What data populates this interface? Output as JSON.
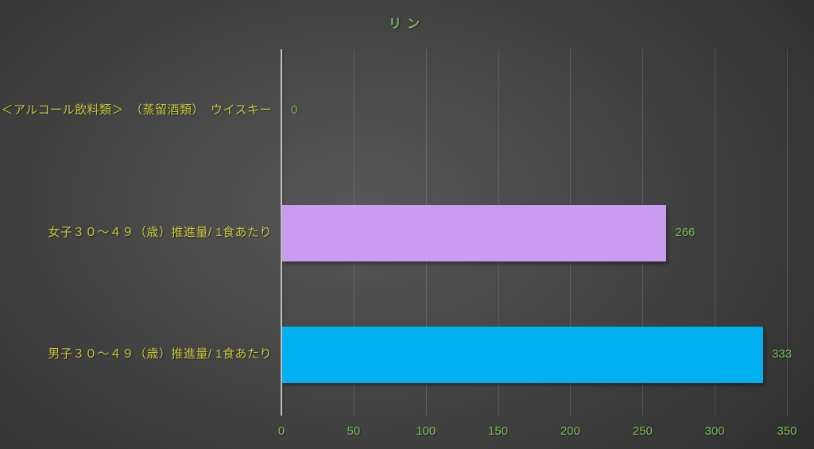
{
  "chart_data": {
    "type": "bar",
    "orientation": "horizontal",
    "title": "リン",
    "categories": [
      "＜アルコール飲料類＞　（蒸留酒類）　ウイスキー",
      "女子３０～４９（歳）推進量/ 1食あたり",
      "男子３０～４９（歳）推進量/ 1食あたり"
    ],
    "values": [
      0,
      266,
      333
    ],
    "value_labels": [
      "0",
      "266",
      "333"
    ],
    "bar_colors": [
      "#C99CF2",
      "#C99CF2",
      "#00B0F0"
    ],
    "xlim": [
      0,
      350
    ],
    "xticks": [
      0,
      50,
      100,
      150,
      200,
      250,
      300,
      350
    ],
    "grid": true,
    "legend": false
  },
  "colors": {
    "background_center": "#575757",
    "background_mid": "#424242",
    "background_edge": "#272727",
    "title_text": "#78BE5A",
    "category_text": "#C8C83E",
    "value_text": "#78BE5A",
    "tick_text": "#78BE5A",
    "axis_line": "#C8C8C8",
    "gridline": "rgba(255,255,255,0.13)",
    "bar_female": "#C99CF2",
    "bar_male": "#00B0F0"
  }
}
